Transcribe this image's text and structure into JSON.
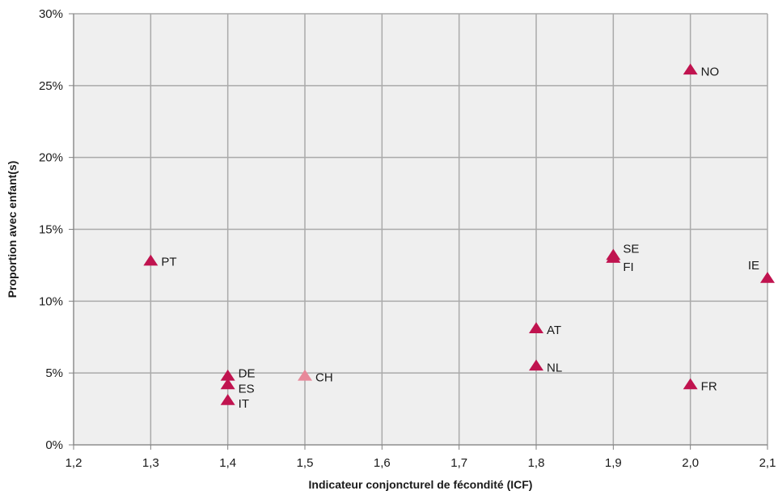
{
  "chart_data": {
    "type": "scatter",
    "xlabel": "Indicateur conjoncturel de fécondité (ICF)",
    "ylabel": "Proportion avec enfant(s)",
    "xlim": [
      1.2,
      2.1
    ],
    "ylim": [
      0,
      30
    ],
    "x_ticks": [
      "1,2",
      "1,3",
      "1,4",
      "1,5",
      "1,6",
      "1,7",
      "1,8",
      "1,9",
      "2,0",
      "2,1"
    ],
    "y_ticks": [
      "0%",
      "5%",
      "10%",
      "15%",
      "20%",
      "25%",
      "30%"
    ],
    "grid": true,
    "marker": "triangle",
    "colors": {
      "default": "#c0134f",
      "highlight": "#e8899a",
      "grid": "#aaaaaa",
      "plot_bg": "#efefef",
      "axis": "#7f7f7f"
    },
    "points": [
      {
        "label": "PT",
        "x": 1.3,
        "y": 12.8,
        "highlight": false
      },
      {
        "label": "DE",
        "x": 1.4,
        "y": 4.8,
        "highlight": false
      },
      {
        "label": "ES",
        "x": 1.4,
        "y": 4.2,
        "highlight": false
      },
      {
        "label": "IT",
        "x": 1.4,
        "y": 3.1,
        "highlight": false
      },
      {
        "label": "CH",
        "x": 1.5,
        "y": 4.8,
        "highlight": true
      },
      {
        "label": "AT",
        "x": 1.8,
        "y": 8.1,
        "highlight": false
      },
      {
        "label": "NL",
        "x": 1.8,
        "y": 5.5,
        "highlight": false
      },
      {
        "label": "SE",
        "x": 1.9,
        "y": 13.2,
        "highlight": false
      },
      {
        "label": "FI",
        "x": 1.9,
        "y": 13.0,
        "highlight": false
      },
      {
        "label": "NO",
        "x": 2.0,
        "y": 26.1,
        "highlight": false
      },
      {
        "label": "FR",
        "x": 2.0,
        "y": 4.2,
        "highlight": false
      },
      {
        "label": "IE",
        "x": 2.1,
        "y": 11.6,
        "highlight": false
      }
    ]
  }
}
